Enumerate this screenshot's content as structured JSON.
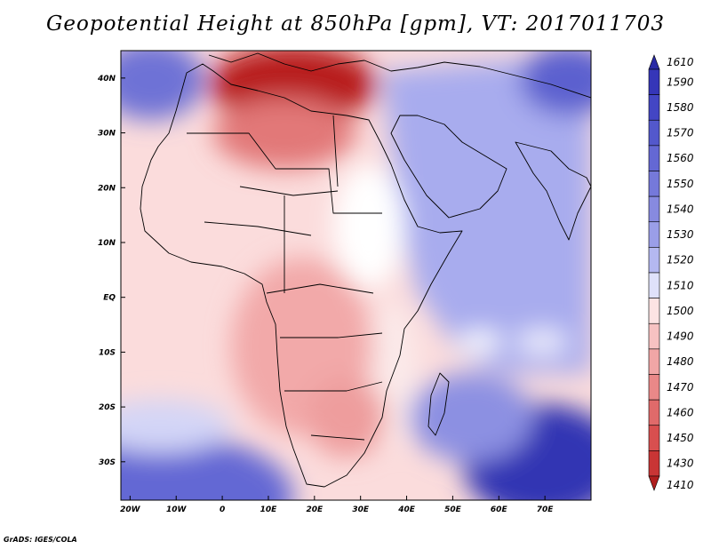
{
  "title": "Geopotential Height at 850hPa [gpm], VT: 2017011703",
  "credit": "GrADS: IGES/COLA",
  "map": {
    "lon_range": [
      -22,
      80
    ],
    "lat_range": [
      -37,
      45
    ],
    "lon_ticks": [
      {
        "value": -20,
        "label": "20W"
      },
      {
        "value": -10,
        "label": "10W"
      },
      {
        "value": 0,
        "label": "0"
      },
      {
        "value": 10,
        "label": "10E"
      },
      {
        "value": 20,
        "label": "20E"
      },
      {
        "value": 30,
        "label": "30E"
      },
      {
        "value": 40,
        "label": "40E"
      },
      {
        "value": 50,
        "label": "50E"
      },
      {
        "value": 60,
        "label": "60E"
      },
      {
        "value": 70,
        "label": "70E"
      }
    ],
    "lat_ticks": [
      {
        "value": 40,
        "label": "40N"
      },
      {
        "value": 30,
        "label": "30N"
      },
      {
        "value": 20,
        "label": "20N"
      },
      {
        "value": 10,
        "label": "10N"
      },
      {
        "value": 0,
        "label": "EQ"
      },
      {
        "value": -10,
        "label": "10S"
      },
      {
        "value": -20,
        "label": "20S"
      },
      {
        "value": -30,
        "label": "30S"
      }
    ]
  },
  "colorbar": {
    "levels": [
      "1610",
      "1590",
      "1580",
      "1570",
      "1560",
      "1550",
      "1540",
      "1530",
      "1520",
      "1510",
      "1500",
      "1490",
      "1480",
      "1470",
      "1460",
      "1450",
      "1430",
      "1410"
    ],
    "colors": [
      "#2a2ba6",
      "#3536b8",
      "#4346c4",
      "#5358cc",
      "#6468d4",
      "#7579da",
      "#878ae0",
      "#9a9ee8",
      "#b4b8f0",
      "#dfe1fa",
      "#fde3e3",
      "#f7c2c2",
      "#f0a6a6",
      "#e98888",
      "#e06a6a",
      "#d84f4f",
      "#c93535",
      "#b01e1e"
    ]
  }
}
